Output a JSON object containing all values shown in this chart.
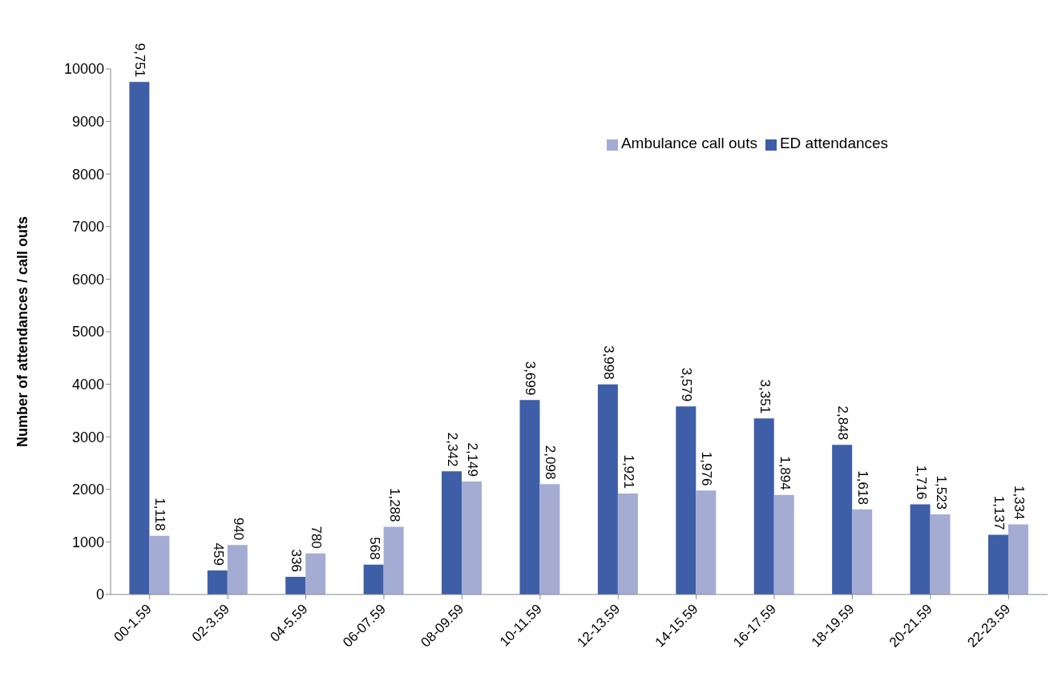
{
  "chart_data": {
    "type": "bar",
    "ylabel": "Number of attendances / call outs",
    "categories": [
      "00-1.59",
      "02-3.59",
      "04-5.59",
      "06-07.59",
      "08-09.59",
      "10-11.59",
      "12-13.59",
      "14-15.59",
      "16-17.59",
      "18-19.59",
      "20-21.59",
      "22-23.59"
    ],
    "series": [
      {
        "name": "ED attendances",
        "color": "#3f5ea8",
        "values": [
          9751,
          459,
          336,
          568,
          2342,
          3699,
          3998,
          3579,
          3351,
          2848,
          1716,
          1137
        ],
        "value_labels": [
          "9,751",
          "459",
          "336",
          "568",
          "2,342",
          "3,699",
          "3,998",
          "3,579",
          "3,351",
          "2,848",
          "1,716",
          "1,137"
        ]
      },
      {
        "name": "Ambulance call outs",
        "color": "#a4acd4",
        "values": [
          1118,
          940,
          780,
          1288,
          2149,
          2098,
          1921,
          1976,
          1894,
          1618,
          1523,
          1334
        ],
        "value_labels": [
          "1,118",
          "940",
          "780",
          "1,288",
          "2,149",
          "2,098",
          "1,921",
          "1,976",
          "1,894",
          "1,618",
          "1,523",
          "1,334"
        ]
      }
    ],
    "ylim": [
      0,
      10000
    ],
    "yticks": [
      0,
      1000,
      2000,
      3000,
      4000,
      5000,
      6000,
      7000,
      8000,
      9000,
      10000
    ],
    "grid": false,
    "legend": "top"
  }
}
